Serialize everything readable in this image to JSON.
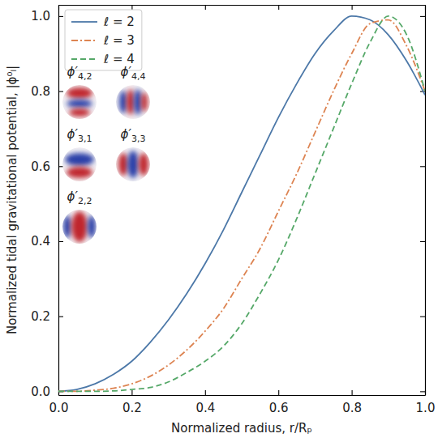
{
  "chart_data": {
    "type": "line",
    "x_label": "Normalized radius, r/Rₚ",
    "y_label": "Normalized tidal gravitational potential, |ϕ⁰ₗ|",
    "x": [
      0,
      0.05,
      0.1,
      0.15,
      0.2,
      0.25,
      0.3,
      0.35,
      0.4,
      0.45,
      0.5,
      0.55,
      0.6,
      0.65,
      0.7,
      0.75,
      0.8,
      0.85,
      0.9,
      0.95,
      1.0
    ],
    "series": [
      {
        "name": "ℓ = 2",
        "color": "#4c78a8",
        "line_style": "solid",
        "values": [
          0,
          0.005,
          0.02,
          0.045,
          0.08,
          0.13,
          0.19,
          0.26,
          0.34,
          0.43,
          0.53,
          0.63,
          0.73,
          0.82,
          0.9,
          0.96,
          1.0,
          0.99,
          0.95,
          0.88,
          0.79
        ]
      },
      {
        "name": "ℓ = 3",
        "color": "#dd8452",
        "line_style": "dashdot",
        "values": [
          0,
          0,
          0.003,
          0.008,
          0.02,
          0.04,
          0.07,
          0.11,
          0.16,
          0.22,
          0.3,
          0.38,
          0.48,
          0.58,
          0.69,
          0.8,
          0.9,
          0.98,
          0.99,
          0.92,
          0.8
        ]
      },
      {
        "name": "ℓ = 4",
        "color": "#55a868",
        "line_style": "dashed",
        "values": [
          0,
          0,
          0,
          0.001,
          0.005,
          0.01,
          0.025,
          0.05,
          0.08,
          0.12,
          0.18,
          0.26,
          0.35,
          0.46,
          0.58,
          0.7,
          0.82,
          0.93,
          1.0,
          0.95,
          0.8
        ]
      }
    ],
    "xlim": [
      0,
      1
    ],
    "ylim": [
      -0.01,
      1.03
    ],
    "xticks": [
      {
        "value": 0,
        "label": "0.0"
      },
      {
        "value": 0.2,
        "label": "0.2"
      },
      {
        "value": 0.4,
        "label": "0.4"
      },
      {
        "value": 0.6,
        "label": "0.6"
      },
      {
        "value": 0.8,
        "label": "0.8"
      },
      {
        "value": 1,
        "label": "1.0"
      }
    ],
    "yticks": [
      {
        "value": 0,
        "label": "0.0"
      },
      {
        "value": 0.2,
        "label": "0.2"
      },
      {
        "value": 0.4,
        "label": "0.4"
      },
      {
        "value": 0.6,
        "label": "0.6"
      },
      {
        "value": 0.8,
        "label": "0.8"
      },
      {
        "value": 1,
        "label": "1.0"
      }
    ],
    "legend": "upper-left",
    "grid": false,
    "insets": [
      {
        "symbol": "ϕ′",
        "subscript": "4,2"
      },
      {
        "symbol": "ϕ′",
        "subscript": "4,4"
      },
      {
        "symbol": "ϕ′",
        "subscript": "3,1"
      },
      {
        "symbol": "ϕ′",
        "subscript": "3,3"
      },
      {
        "symbol": "ϕ′",
        "subscript": "2,2"
      }
    ]
  }
}
